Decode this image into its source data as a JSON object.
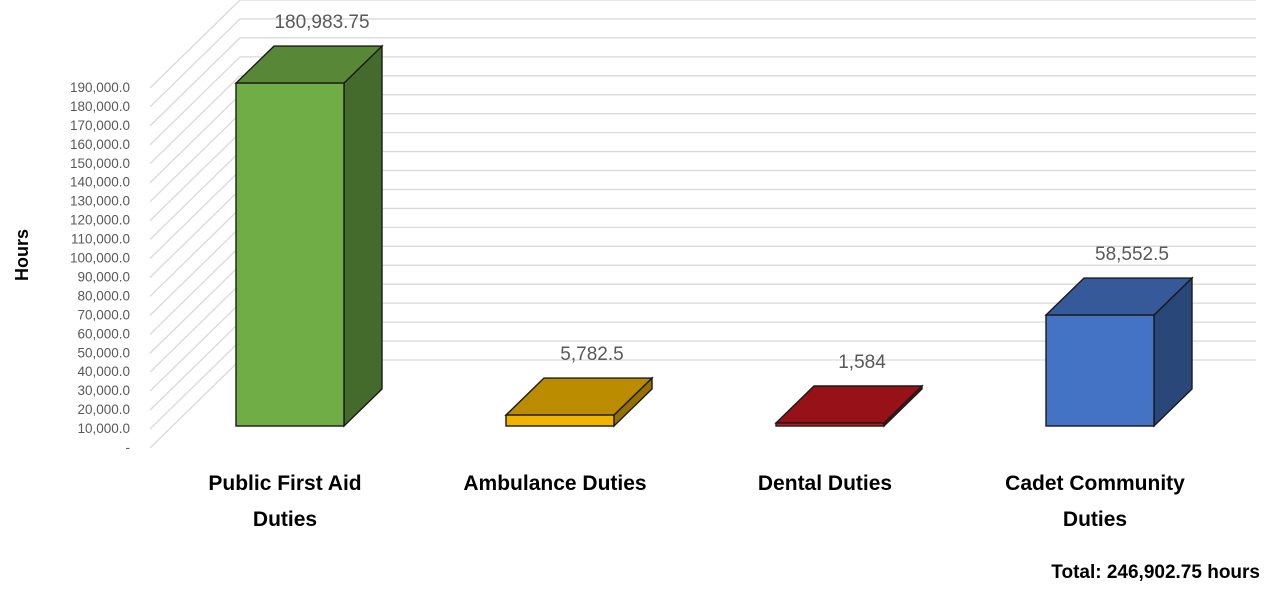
{
  "chart_data": {
    "type": "bar",
    "style": "3d-column",
    "categories": [
      [
        "Public First Aid",
        "Duties"
      ],
      [
        "Ambulance Duties"
      ],
      [
        "Dental Duties"
      ],
      [
        "Cadet Community",
        "Duties"
      ]
    ],
    "values": [
      180983.75,
      5782.5,
      1584,
      58552.5
    ],
    "data_labels": [
      "180,983.75",
      "5,782.5",
      "1,584",
      "58,552.5"
    ],
    "bar_colors": [
      "#70ad47",
      "#f0b400",
      "#c0161f",
      "#4472c4"
    ],
    "ylabel": "Hours",
    "ylim": [
      0,
      190000
    ],
    "yticks": [
      0,
      10000,
      20000,
      30000,
      40000,
      50000,
      60000,
      70000,
      80000,
      90000,
      100000,
      110000,
      120000,
      130000,
      140000,
      150000,
      160000,
      170000,
      180000,
      190000
    ],
    "ytick_labels": [
      "-",
      "10,000.0",
      "20,000.0",
      "30,000.0",
      "40,000.0",
      "50,000.0",
      "60,000.0",
      "70,000.0",
      "80,000.0",
      "90,000.0",
      "100,000.0",
      "110,000.0",
      "120,000.0",
      "130,000.0",
      "140,000.0",
      "150,000.0",
      "160,000.0",
      "170,000.0",
      "180,000.0",
      "190,000.0"
    ],
    "grid": true,
    "legend": "none"
  },
  "total_text": "Total:  246,902.75 hours"
}
